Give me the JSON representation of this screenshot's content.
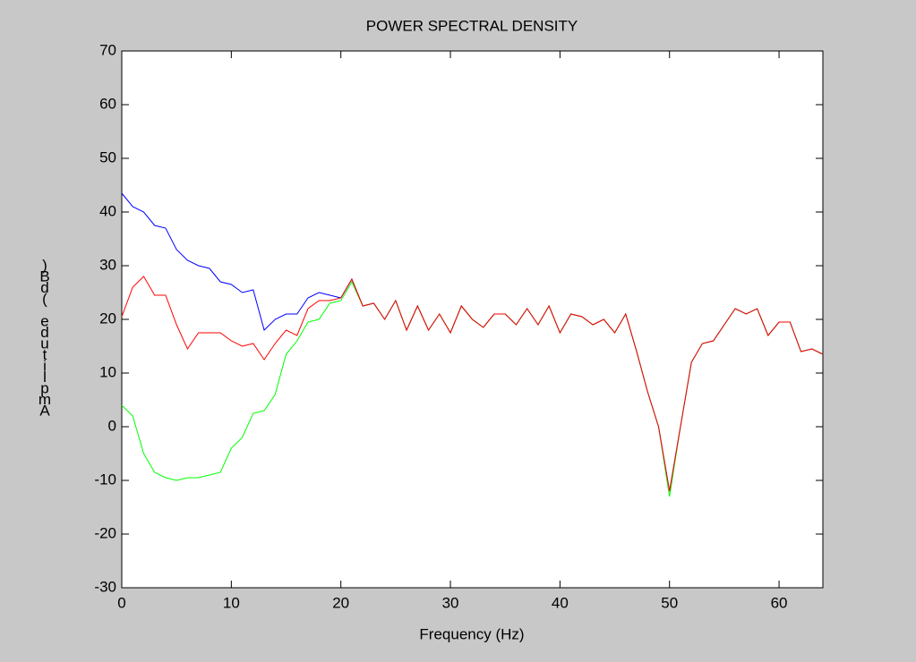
{
  "chart_data": {
    "type": "line",
    "title": "POWER SPECTRAL DENSITY",
    "xlabel": "Frequency (Hz)",
    "ylabel": "Amplitude (dB)",
    "x": [
      0,
      1,
      2,
      3,
      4,
      5,
      6,
      7,
      8,
      9,
      10,
      11,
      12,
      13,
      14,
      15,
      16,
      17,
      18,
      19,
      20,
      21,
      22,
      23,
      24,
      25,
      26,
      27,
      28,
      29,
      30,
      31,
      32,
      33,
      34,
      35,
      36,
      37,
      38,
      39,
      40,
      41,
      42,
      43,
      44,
      45,
      46,
      47,
      48,
      49,
      50,
      51,
      52,
      53,
      54,
      55,
      56,
      57,
      58,
      59,
      60,
      61,
      62,
      63,
      64
    ],
    "series": [
      {
        "color": "#0000ff",
        "values": [
          43.5,
          41,
          40,
          37.5,
          37,
          33,
          31,
          30,
          29.5,
          27,
          26.5,
          25,
          25.5,
          18,
          20,
          21,
          21,
          24,
          25,
          24.5,
          24,
          27.5,
          22.5,
          23,
          20,
          23.5,
          18,
          22.5,
          18,
          21,
          17.5,
          22.5,
          20,
          18.5,
          21,
          21,
          19,
          22,
          19,
          22.5,
          17.5,
          21,
          20.5,
          19,
          20,
          17.5,
          21,
          14,
          6.5,
          0,
          -12,
          0,
          12,
          15.5,
          16,
          19,
          22,
          21,
          22,
          17,
          19.5,
          19.5,
          14,
          14.5,
          13.5
        ]
      },
      {
        "color": "#00ff00",
        "values": [
          4,
          2,
          -5,
          -8.5,
          -9.5,
          -10,
          -9.5,
          -9.5,
          -9,
          -8.5,
          -4,
          -2,
          2.5,
          3,
          6,
          13.5,
          16,
          19.5,
          20,
          23,
          23.5,
          27,
          22.5,
          23,
          20,
          23.5,
          18,
          22.5,
          18,
          21,
          17.5,
          22.5,
          20,
          18.5,
          21,
          21,
          19,
          22,
          19,
          22.5,
          17.5,
          21,
          20.5,
          19,
          20,
          17.5,
          21,
          14,
          6.5,
          0,
          -13,
          0,
          12,
          15.5,
          16,
          19,
          22,
          21,
          22,
          17,
          19.5,
          19.5,
          14,
          14.5,
          13.5
        ]
      },
      {
        "color": "#ff0000",
        "values": [
          20.5,
          26,
          28,
          24.5,
          24.5,
          19,
          14.5,
          17.5,
          17.5,
          17.5,
          16,
          15,
          15.5,
          12.5,
          15.5,
          18,
          17,
          22,
          23.5,
          23.5,
          24,
          27.5,
          22.5,
          23,
          20,
          23.5,
          18,
          22.5,
          18,
          21,
          17.5,
          22.5,
          20,
          18.5,
          21,
          21,
          19,
          22,
          19,
          22.5,
          17.5,
          21,
          20.5,
          19,
          20,
          17.5,
          21,
          14,
          6.5,
          0,
          -12,
          0,
          12,
          15.5,
          16,
          19,
          22,
          21,
          22,
          17,
          19.5,
          19.5,
          14,
          14.5,
          13.5
        ]
      }
    ],
    "xlim": [
      0,
      64
    ],
    "xticks": [
      0,
      10,
      20,
      30,
      40,
      50,
      60
    ],
    "ylim": [
      -30,
      70
    ],
    "yticks": [
      -30,
      -20,
      -10,
      0,
      10,
      20,
      30,
      40,
      50,
      60,
      70
    ],
    "grid": false
  }
}
